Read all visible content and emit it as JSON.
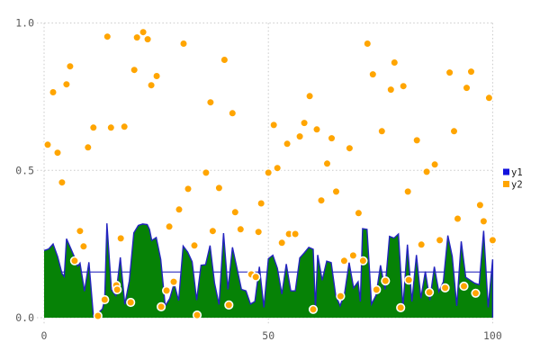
{
  "chart_data": {
    "type": "area",
    "title": "",
    "xlabel": "",
    "ylabel": "",
    "xlim": [
      0,
      100
    ],
    "ylim": [
      0.0,
      1.0
    ],
    "grid": "dotted",
    "legend_position": "right-center",
    "x_ticks": [
      {
        "value": 0,
        "label": "0"
      },
      {
        "value": 50,
        "label": "50"
      },
      {
        "value": 100,
        "label": "100"
      }
    ],
    "y_ticks": [
      {
        "value": 0.0,
        "label": "0.0"
      },
      {
        "value": 0.5,
        "label": "0.5"
      },
      {
        "value": 1.0,
        "label": "1.0"
      }
    ],
    "legend": [
      {
        "label": "y1",
        "color": "#1212dd"
      },
      {
        "label": "y2",
        "color": "#ffa500"
      }
    ],
    "series": [
      {
        "name": "y1",
        "type": "area-line",
        "line_color": "#2323bf",
        "fill_color": "#068206",
        "points": [
          [
            0,
            0.228
          ],
          [
            1,
            0.233
          ],
          [
            2,
            0.25
          ],
          [
            3,
            0.208
          ],
          [
            4,
            0.15
          ],
          [
            4.5,
            0.14
          ],
          [
            5,
            0.268
          ],
          [
            6,
            0.233
          ],
          [
            7,
            0.198
          ],
          [
            7.5,
            0.175
          ],
          [
            8,
            0.185
          ],
          [
            9,
            0.09
          ],
          [
            10,
            0.188
          ],
          [
            11,
            0.005
          ],
          [
            12,
            0.015
          ],
          [
            13,
            0.03
          ],
          [
            13.5,
            0.06
          ],
          [
            14,
            0.32
          ],
          [
            15,
            0.095
          ],
          [
            16,
            0.075
          ],
          [
            17,
            0.205
          ],
          [
            18,
            0.045
          ],
          [
            19,
            0.125
          ],
          [
            20,
            0.288
          ],
          [
            21,
            0.313
          ],
          [
            22,
            0.318
          ],
          [
            23,
            0.316
          ],
          [
            23.5,
            0.3
          ],
          [
            24,
            0.262
          ],
          [
            25,
            0.272
          ],
          [
            26,
            0.198
          ],
          [
            27,
            0.04
          ],
          [
            28,
            0.065
          ],
          [
            29,
            0.116
          ],
          [
            30,
            0.058
          ],
          [
            31,
            0.243
          ],
          [
            32,
            0.223
          ],
          [
            33,
            0.19
          ],
          [
            34,
            0.06
          ],
          [
            35,
            0.178
          ],
          [
            36,
            0.18
          ],
          [
            37,
            0.245
          ],
          [
            38,
            0.117
          ],
          [
            39,
            0.045
          ],
          [
            40,
            0.287
          ],
          [
            41,
            0.096
          ],
          [
            42,
            0.239
          ],
          [
            43,
            0.168
          ],
          [
            44,
            0.096
          ],
          [
            45,
            0.091
          ],
          [
            46,
            0.046
          ],
          [
            47,
            0.055
          ],
          [
            48,
            0.173
          ],
          [
            49,
            0.035
          ],
          [
            50,
            0.2
          ],
          [
            51,
            0.212
          ],
          [
            52,
            0.168
          ],
          [
            53,
            0.08
          ],
          [
            54,
            0.182
          ],
          [
            55,
            0.091
          ],
          [
            56,
            0.091
          ],
          [
            57,
            0.203
          ],
          [
            58,
            0.22
          ],
          [
            59,
            0.239
          ],
          [
            60,
            0.232
          ],
          [
            60.5,
            0.03
          ],
          [
            61,
            0.213
          ],
          [
            62,
            0.127
          ],
          [
            63,
            0.192
          ],
          [
            64,
            0.187
          ],
          [
            65,
            0.076
          ],
          [
            66,
            0.04
          ],
          [
            67,
            0.083
          ],
          [
            68,
            0.187
          ],
          [
            69,
            0.101
          ],
          [
            70,
            0.122
          ],
          [
            70.5,
            0.055
          ],
          [
            71,
            0.302
          ],
          [
            72,
            0.3
          ],
          [
            73,
            0.046
          ],
          [
            74,
            0.076
          ],
          [
            75,
            0.178
          ],
          [
            76,
            0.096
          ],
          [
            77,
            0.276
          ],
          [
            78,
            0.27
          ],
          [
            79,
            0.284
          ],
          [
            80,
            0.035
          ],
          [
            81,
            0.248
          ],
          [
            82,
            0.055
          ],
          [
            83,
            0.213
          ],
          [
            84,
            0.066
          ],
          [
            85,
            0.157
          ],
          [
            86,
            0.06
          ],
          [
            87,
            0.173
          ],
          [
            88,
            0.088
          ],
          [
            89,
            0.122
          ],
          [
            90,
            0.279
          ],
          [
            91,
            0.208
          ],
          [
            92,
            0.04
          ],
          [
            93,
            0.259
          ],
          [
            94,
            0.137
          ],
          [
            95,
            0.127
          ],
          [
            96,
            0.117
          ],
          [
            97,
            0.112
          ],
          [
            98,
            0.295
          ],
          [
            99,
            0.035
          ],
          [
            100,
            0.198
          ]
        ]
      },
      {
        "name": "y1-mean-line",
        "type": "hline",
        "color": "#4242c6",
        "value": 0.155
      },
      {
        "name": "y2",
        "type": "scatter",
        "marker_color": "#ffa500",
        "marker_edge_color": "#ffffff",
        "points": [
          [
            0.8,
            0.587
          ],
          [
            2.0,
            0.765
          ],
          [
            3.0,
            0.56
          ],
          [
            4.0,
            0.459
          ],
          [
            5.0,
            0.792
          ],
          [
            5.8,
            0.853
          ],
          [
            6.8,
            0.193
          ],
          [
            8.0,
            0.294
          ],
          [
            8.8,
            0.242
          ],
          [
            9.8,
            0.578
          ],
          [
            11.0,
            0.645
          ],
          [
            12.0,
            0.006
          ],
          [
            13.5,
            0.061
          ],
          [
            14.1,
            0.954
          ],
          [
            14.9,
            0.645
          ],
          [
            16.1,
            0.11
          ],
          [
            16.3,
            0.095
          ],
          [
            17.1,
            0.269
          ],
          [
            17.9,
            0.648
          ],
          [
            19.3,
            0.052
          ],
          [
            20.1,
            0.841
          ],
          [
            20.7,
            0.951
          ],
          [
            22.1,
            0.969
          ],
          [
            23.1,
            0.945
          ],
          [
            23.9,
            0.789
          ],
          [
            25.1,
            0.82
          ],
          [
            26.1,
            0.037
          ],
          [
            27.3,
            0.092
          ],
          [
            27.9,
            0.309
          ],
          [
            28.9,
            0.122
          ],
          [
            30.1,
            0.367
          ],
          [
            31.1,
            0.93
          ],
          [
            32.1,
            0.437
          ],
          [
            33.5,
            0.245
          ],
          [
            34.1,
            0.009
          ],
          [
            36.1,
            0.492
          ],
          [
            37.1,
            0.731
          ],
          [
            37.6,
            0.294
          ],
          [
            39.0,
            0.44
          ],
          [
            40.2,
            0.875
          ],
          [
            41.2,
            0.043
          ],
          [
            42.0,
            0.694
          ],
          [
            42.6,
            0.358
          ],
          [
            43.8,
            0.3
          ],
          [
            46.2,
            0.147
          ],
          [
            47.2,
            0.138
          ],
          [
            47.8,
            0.291
          ],
          [
            48.4,
            0.388
          ],
          [
            50.0,
            0.492
          ],
          [
            51.2,
            0.654
          ],
          [
            52.0,
            0.508
          ],
          [
            53.0,
            0.254
          ],
          [
            54.2,
            0.59
          ],
          [
            54.6,
            0.284
          ],
          [
            56.0,
            0.284
          ],
          [
            57.0,
            0.615
          ],
          [
            58.0,
            0.661
          ],
          [
            59.2,
            0.752
          ],
          [
            60.0,
            0.028
          ],
          [
            60.8,
            0.639
          ],
          [
            61.8,
            0.398
          ],
          [
            63.1,
            0.523
          ],
          [
            64.1,
            0.609
          ],
          [
            65.1,
            0.428
          ],
          [
            66.1,
            0.073
          ],
          [
            66.9,
            0.193
          ],
          [
            68.1,
            0.575
          ],
          [
            68.9,
            0.211
          ],
          [
            70.1,
            0.355
          ],
          [
            71.1,
            0.193
          ],
          [
            72.1,
            0.93
          ],
          [
            73.3,
            0.826
          ],
          [
            74.1,
            0.095
          ],
          [
            75.3,
            0.633
          ],
          [
            76.1,
            0.125
          ],
          [
            77.3,
            0.774
          ],
          [
            78.1,
            0.866
          ],
          [
            79.5,
            0.034
          ],
          [
            80.1,
            0.786
          ],
          [
            81.1,
            0.428
          ],
          [
            81.3,
            0.128
          ],
          [
            83.1,
            0.602
          ],
          [
            84.1,
            0.248
          ],
          [
            85.3,
            0.495
          ],
          [
            85.9,
            0.086
          ],
          [
            87.1,
            0.52
          ],
          [
            88.2,
            0.263
          ],
          [
            89.4,
            0.101
          ],
          [
            90.4,
            0.832
          ],
          [
            91.4,
            0.633
          ],
          [
            92.2,
            0.336
          ],
          [
            93.6,
            0.107
          ],
          [
            94.2,
            0.78
          ],
          [
            95.2,
            0.835
          ],
          [
            96.2,
            0.083
          ],
          [
            97.2,
            0.382
          ],
          [
            98.0,
            0.327
          ],
          [
            99.2,
            0.746
          ],
          [
            100.0,
            0.263
          ]
        ]
      }
    ]
  }
}
